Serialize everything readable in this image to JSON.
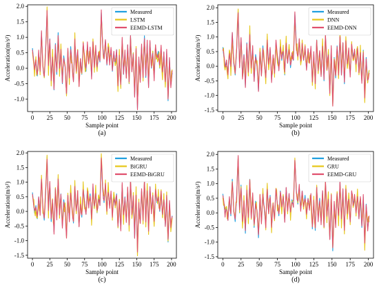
{
  "chart_data": [
    {
      "type": "line",
      "caption": "(a)",
      "xlabel": "Sample point",
      "ylabel": "Acceleration(m/s²)",
      "xlim": [
        -7,
        207
      ],
      "ylim": [
        -1.4,
        2.05
      ],
      "xticks": [
        0,
        25,
        50,
        75,
        100,
        125,
        150,
        175,
        200
      ],
      "yticks": [
        -1.0,
        -0.5,
        0.0,
        0.5,
        1.0,
        1.5,
        2.0
      ],
      "grid": false,
      "legend_position": "top-right",
      "series": [
        {
          "name": "Measured",
          "color": "#1f9fdf"
        },
        {
          "name": "LSTM",
          "color": "#e6c619"
        },
        {
          "name": "EEMD-LSTM",
          "color": "#e0506e"
        }
      ]
    },
    {
      "type": "line",
      "caption": "(b)",
      "xlabel": "Sample point",
      "ylabel": "Acceleration(m/s²)",
      "xlim": [
        -7,
        207
      ],
      "ylim": [
        -1.55,
        2.1
      ],
      "xticks": [
        0,
        25,
        50,
        75,
        100,
        125,
        150,
        175,
        200
      ],
      "yticks": [
        -1.5,
        -1.0,
        -0.5,
        0.0,
        0.5,
        1.0,
        1.5,
        2.0
      ],
      "grid": false,
      "legend_position": "top-right",
      "series": [
        {
          "name": "Measured",
          "color": "#1f9fdf"
        },
        {
          "name": "DNN",
          "color": "#e6c619"
        },
        {
          "name": "EEMD-DNN",
          "color": "#e0506e"
        }
      ]
    },
    {
      "type": "line",
      "caption": "(c)",
      "xlabel": "Sample point",
      "ylabel": "Acceleration(m/s²)",
      "xlim": [
        -7,
        207
      ],
      "ylim": [
        -1.6,
        2.05
      ],
      "xticks": [
        0,
        25,
        50,
        75,
        100,
        125,
        150,
        175,
        200
      ],
      "yticks": [
        -1.5,
        -1.0,
        -0.5,
        0.0,
        0.5,
        1.0,
        1.5,
        2.0
      ],
      "grid": false,
      "legend_position": "top-right",
      "series": [
        {
          "name": "Measured",
          "color": "#1f9fdf"
        },
        {
          "name": "BiGRU",
          "color": "#e6c619"
        },
        {
          "name": "EEMD-BiGRU",
          "color": "#e0506e"
        }
      ]
    },
    {
      "type": "line",
      "caption": "(d)",
      "xlabel": "Sample point",
      "ylabel": "Acceleration(m/s²)",
      "xlim": [
        -7,
        207
      ],
      "ylim": [
        -1.55,
        2.1
      ],
      "xticks": [
        0,
        25,
        50,
        75,
        100,
        125,
        150,
        175,
        200
      ],
      "yticks": [
        -1.5,
        -1.0,
        -0.5,
        0.0,
        0.5,
        1.0,
        1.5,
        2.0
      ],
      "grid": false,
      "legend_position": "top-right",
      "series": [
        {
          "name": "Measured",
          "color": "#1f9fdf"
        },
        {
          "name": "GRU",
          "color": "#e6c619"
        },
        {
          "name": "EEMD-GRU",
          "color": "#e0506e"
        }
      ]
    }
  ],
  "signal": {
    "measured_anchors": [
      [
        0,
        0.65
      ],
      [
        3,
        -0.05
      ],
      [
        5,
        0.2
      ],
      [
        7,
        -0.25
      ],
      [
        9,
        0.5
      ],
      [
        11,
        -0.1
      ],
      [
        13,
        1.15
      ],
      [
        15,
        0.1
      ],
      [
        17,
        -0.3
      ],
      [
        19,
        0.6
      ],
      [
        21,
        1.87
      ],
      [
        23,
        0.0
      ],
      [
        25,
        0.95
      ],
      [
        27,
        -0.35
      ],
      [
        29,
        0.4
      ],
      [
        31,
        -0.7
      ],
      [
        33,
        0.8
      ],
      [
        35,
        -0.2
      ],
      [
        37,
        1.15
      ],
      [
        39,
        -0.1
      ],
      [
        41,
        0.6
      ],
      [
        43,
        -0.5
      ],
      [
        45,
        0.4
      ],
      [
        47,
        0.05
      ],
      [
        49,
        -0.85
      ],
      [
        51,
        0.55
      ],
      [
        53,
        -0.3
      ],
      [
        55,
        0.7
      ],
      [
        57,
        0.1
      ],
      [
        59,
        -0.4
      ],
      [
        61,
        0.9
      ],
      [
        63,
        0.0
      ],
      [
        65,
        0.6
      ],
      [
        67,
        -0.5
      ],
      [
        69,
        0.3
      ],
      [
        71,
        -0.2
      ],
      [
        73,
        0.8
      ],
      [
        75,
        0.3
      ],
      [
        77,
        -0.1
      ],
      [
        79,
        0.75
      ],
      [
        81,
        0.2
      ],
      [
        83,
        0.6
      ],
      [
        85,
        -0.3
      ],
      [
        87,
        0.85
      ],
      [
        89,
        0.1
      ],
      [
        91,
        0.65
      ],
      [
        93,
        -0.05
      ],
      [
        95,
        0.45
      ],
      [
        97,
        0.2
      ],
      [
        99,
        1.8
      ],
      [
        101,
        0.75
      ],
      [
        103,
        0.3
      ],
      [
        105,
        0.9
      ],
      [
        107,
        0.1
      ],
      [
        109,
        0.75
      ],
      [
        111,
        0.2
      ],
      [
        113,
        0.6
      ],
      [
        115,
        -0.1
      ],
      [
        117,
        0.5
      ],
      [
        119,
        0.15
      ],
      [
        121,
        0.6
      ],
      [
        123,
        -0.55
      ],
      [
        125,
        0.4
      ],
      [
        127,
        -0.6
      ],
      [
        129,
        0.9
      ],
      [
        131,
        -0.2
      ],
      [
        133,
        0.5
      ],
      [
        135,
        -0.3
      ],
      [
        137,
        0.75
      ],
      [
        139,
        -0.5
      ],
      [
        141,
        1.05
      ],
      [
        143,
        -0.1
      ],
      [
        145,
        0.5
      ],
      [
        147,
        -0.9
      ],
      [
        149,
        0.6
      ],
      [
        151,
        -1.3
      ],
      [
        153,
        0.3
      ],
      [
        155,
        -0.4
      ],
      [
        157,
        0.7
      ],
      [
        159,
        -0.2
      ],
      [
        161,
        1.05
      ],
      [
        163,
        -0.3
      ],
      [
        165,
        0.8
      ],
      [
        167,
        -0.6
      ],
      [
        169,
        0.85
      ],
      [
        171,
        0.0
      ],
      [
        173,
        0.55
      ],
      [
        175,
        -0.3
      ],
      [
        177,
        0.7
      ],
      [
        179,
        0.3
      ],
      [
        181,
        0.55
      ],
      [
        183,
        0.0
      ],
      [
        185,
        0.65
      ],
      [
        187,
        -0.2
      ],
      [
        189,
        0.5
      ],
      [
        191,
        -0.5
      ],
      [
        193,
        0.55
      ],
      [
        195,
        -1.05
      ],
      [
        197,
        0.3
      ],
      [
        199,
        -0.55
      ],
      [
        201,
        -0.15
      ]
    ]
  }
}
